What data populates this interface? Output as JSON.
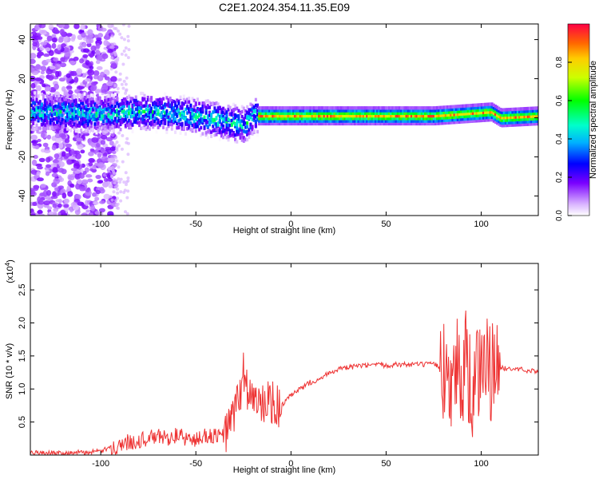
{
  "title": "C2E1.2024.354.11.35.E09",
  "colors": {
    "series": "#ee3333",
    "axis": "#000000"
  },
  "chart_data": [
    {
      "type": "heatmap",
      "xlabel": "Height of straight line (km)",
      "ylabel": "Frequency (Hz)",
      "xlim": [
        -137,
        130
      ],
      "ylim": [
        -50,
        48
      ],
      "x_ticks": [
        -100,
        -50,
        0,
        50,
        100
      ],
      "y_ticks": [
        -40,
        -20,
        0,
        20,
        40
      ],
      "colorbar": {
        "label": "Normalized spectral amplitude",
        "range": [
          0,
          1
        ],
        "ticks": [
          0.0,
          0.2,
          0.4,
          0.6,
          0.8
        ],
        "colormap": "rainbow"
      },
      "ridge": [
        [
          -130,
          3
        ],
        [
          -100,
          2
        ],
        [
          -80,
          3
        ],
        [
          -60,
          2
        ],
        [
          -40,
          -1
        ],
        [
          -25,
          -4
        ],
        [
          -20,
          1
        ],
        [
          0,
          1
        ],
        [
          25,
          1
        ],
        [
          50,
          1
        ],
        [
          75,
          1
        ],
        [
          90,
          2
        ],
        [
          105,
          3
        ],
        [
          110,
          0
        ],
        [
          130,
          1
        ]
      ]
    },
    {
      "type": "line",
      "xlabel": "Height of straight line (km)",
      "ylabel": "SNR (10 * v/v)",
      "y_multiplier": "(x10^4)",
      "y_multiplier_base": "(x10",
      "y_multiplier_exp": "4",
      "y_multiplier_close": ")",
      "xlim": [
        -137,
        130
      ],
      "ylim": [
        0,
        2.9
      ],
      "x_ticks": [
        -100,
        -50,
        0,
        50,
        100
      ],
      "y_ticks": [
        0.5,
        1.0,
        1.5,
        2.0,
        2.5
      ],
      "series": [
        {
          "x": [
            -137,
            -120,
            -105,
            -100,
            -95,
            -90,
            -85,
            -80,
            -75,
            -70,
            -65,
            -60,
            -55,
            -50,
            -45,
            -40,
            -35,
            -30,
            -27,
            -25,
            -22,
            -20,
            -18,
            -15,
            -12,
            -10,
            -8,
            -5,
            0,
            5,
            10,
            15,
            20,
            25,
            30,
            35,
            40,
            45,
            50,
            55,
            60,
            65,
            70,
            75,
            78,
            80,
            82,
            85,
            88,
            90,
            92,
            95,
            98,
            100,
            102,
            105,
            107,
            108,
            110,
            112,
            115,
            120,
            125,
            130
          ],
          "y": [
            0.03,
            0.03,
            0.04,
            0.06,
            0.1,
            0.15,
            0.2,
            0.22,
            0.25,
            0.28,
            0.26,
            0.3,
            0.25,
            0.22,
            0.3,
            0.28,
            0.3,
            0.6,
            0.9,
            1.25,
            0.9,
            0.85,
            0.8,
            0.7,
            0.85,
            0.8,
            0.7,
            0.75,
            0.9,
            1.0,
            1.1,
            1.15,
            1.25,
            1.3,
            1.32,
            1.35,
            1.35,
            1.36,
            1.36,
            1.37,
            1.37,
            1.37,
            1.37,
            1.37,
            1.35,
            1.2,
            1.4,
            1.1,
            1.5,
            1.0,
            1.6,
            0.8,
            1.4,
            1.0,
            1.5,
            1.2,
            1.3,
            1.4,
            1.3,
            1.32,
            1.3,
            1.3,
            1.28,
            1.27
          ]
        }
      ]
    }
  ]
}
